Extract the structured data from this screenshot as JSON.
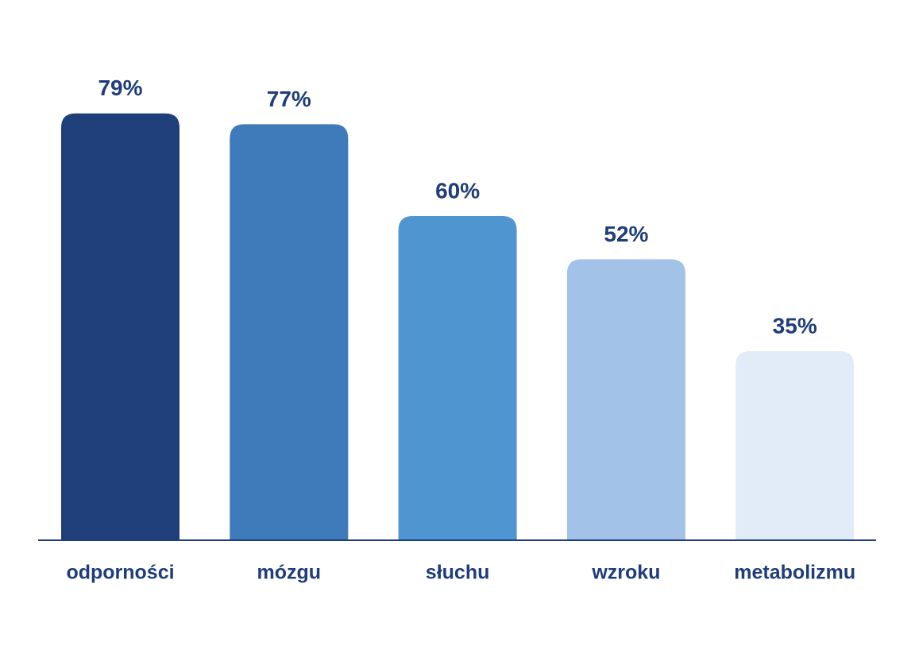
{
  "chart_data": {
    "type": "bar",
    "categories": [
      "odporności",
      "mózgu",
      "słuchu",
      "wzroku",
      "metabolizmu"
    ],
    "values": [
      79,
      77,
      60,
      52,
      35
    ],
    "value_labels": [
      "79%",
      "77%",
      "60%",
      "52%",
      "35%"
    ],
    "colors": [
      "#1f3f7b",
      "#3f7bba",
      "#4f95d0",
      "#a3c2e7",
      "#e2ecf8"
    ]
  }
}
